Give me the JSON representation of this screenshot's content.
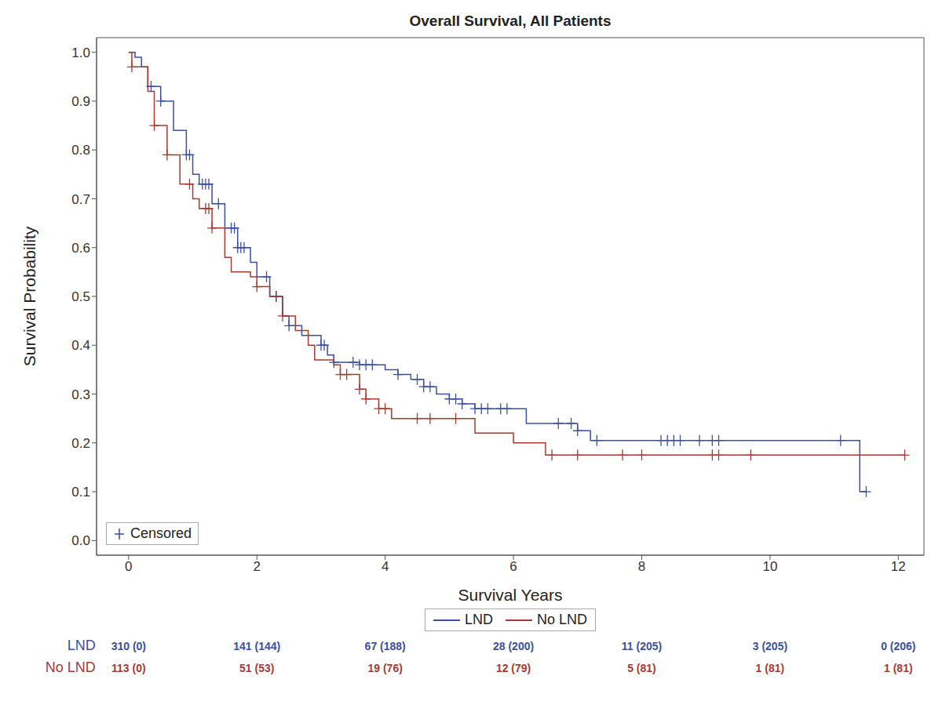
{
  "chart_data": {
    "type": "line",
    "title": "Overall Survival, All Patients",
    "x_label": "Survival Years",
    "y_label": "Survival Probability",
    "line_style": "step",
    "marker": "plus",
    "grid": false,
    "legend": "bottom",
    "censored_label": "Censored",
    "xlim": [
      -0.5,
      12.4
    ],
    "xticks": [
      0,
      2,
      4,
      6,
      8,
      10,
      12
    ],
    "ylim": [
      -0.03,
      1.03
    ],
    "yticks": [
      {
        "value": 0,
        "label": "0.0"
      },
      0.1,
      0.2,
      0.3,
      0.4,
      0.5,
      0.6,
      0.7,
      0.8,
      0.9,
      {
        "value": 1,
        "label": "1.0"
      }
    ],
    "series": [
      {
        "name": "LND",
        "color": "#3b4fa3",
        "x": [
          0,
          0.1,
          0.2,
          0.3,
          0.5,
          0.7,
          0.9,
          1.0,
          1.1,
          1.3,
          1.5,
          1.7,
          1.9,
          2.0,
          2.2,
          2.4,
          2.5,
          2.7,
          3.0,
          3.1,
          3.2,
          3.6,
          4.0,
          4.2,
          4.4,
          4.6,
          4.8,
          5.0,
          5.2,
          5.4,
          6.2,
          7.0,
          7.2,
          11.4,
          11.5
        ],
        "values": [
          1.0,
          0.99,
          0.97,
          0.93,
          0.9,
          0.84,
          0.79,
          0.75,
          0.73,
          0.69,
          0.64,
          0.6,
          0.57,
          0.54,
          0.5,
          0.46,
          0.44,
          0.42,
          0.4,
          0.38,
          0.365,
          0.36,
          0.35,
          0.34,
          0.33,
          0.315,
          0.3,
          0.29,
          0.28,
          0.27,
          0.24,
          0.225,
          0.205,
          0.1,
          0.1
        ],
        "censored": [
          0.35,
          0.5,
          0.9,
          0.95,
          1.15,
          1.2,
          1.25,
          1.4,
          1.6,
          1.65,
          1.7,
          1.75,
          1.8,
          2.15,
          2.3,
          2.5,
          3.0,
          3.05,
          3.2,
          3.5,
          3.6,
          3.7,
          3.8,
          4.2,
          4.5,
          4.6,
          4.7,
          5.0,
          5.1,
          5.2,
          5.4,
          5.5,
          5.6,
          5.8,
          5.9,
          6.7,
          6.9,
          7.0,
          7.3,
          8.3,
          8.4,
          8.5,
          8.6,
          8.9,
          9.1,
          9.2,
          11.1,
          11.5
        ],
        "at_risk": [
          "310 (0)",
          "141 (144)",
          "67 (188)",
          "28 (200)",
          "11 (205)",
          "3 (205)",
          "0 (206)"
        ]
      },
      {
        "name": "No LND",
        "color": "#a83a32",
        "x": [
          0,
          0.05,
          0.3,
          0.4,
          0.6,
          0.8,
          1.0,
          1.1,
          1.3,
          1.5,
          1.6,
          1.9,
          2.0,
          2.2,
          2.4,
          2.6,
          2.8,
          2.9,
          3.2,
          3.3,
          3.6,
          3.7,
          3.9,
          4.1,
          5.0,
          5.4,
          6.0,
          6.5,
          12.1
        ],
        "values": [
          1.0,
          0.97,
          0.92,
          0.85,
          0.79,
          0.73,
          0.7,
          0.68,
          0.64,
          0.58,
          0.55,
          0.54,
          0.52,
          0.5,
          0.46,
          0.43,
          0.4,
          0.37,
          0.36,
          0.34,
          0.31,
          0.29,
          0.27,
          0.25,
          0.25,
          0.22,
          0.2,
          0.175,
          0.175
        ],
        "censored": [
          0.05,
          0.4,
          0.6,
          0.95,
          1.2,
          1.25,
          1.3,
          2.0,
          2.3,
          2.4,
          3.3,
          3.4,
          3.6,
          3.7,
          3.9,
          4.0,
          4.5,
          4.7,
          5.1,
          6.6,
          7.0,
          7.7,
          8.0,
          9.1,
          9.2,
          9.7,
          12.1
        ],
        "at_risk": [
          "113 (0)",
          "51 (53)",
          "19 (76)",
          "12 (79)",
          "5 (81)",
          "1 (81)",
          "1 (81)"
        ]
      }
    ]
  }
}
